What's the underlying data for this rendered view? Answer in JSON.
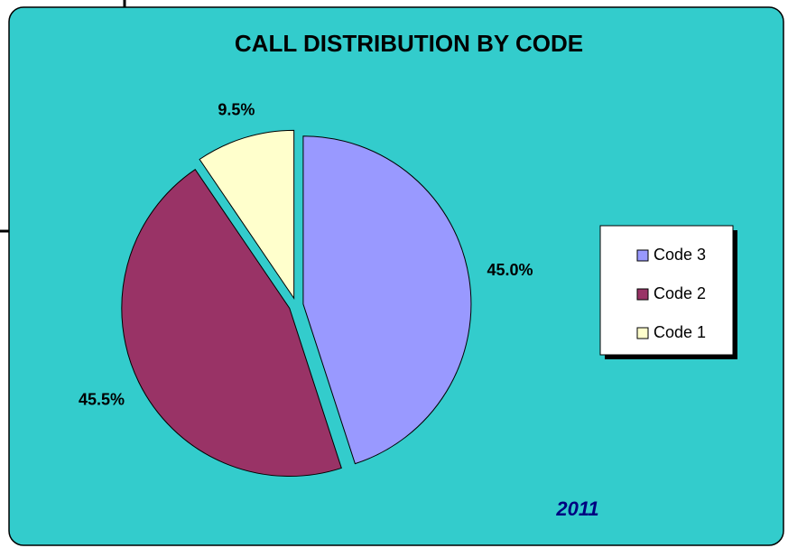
{
  "chart_data": {
    "type": "pie",
    "title": "CALL DISTRIBUTION BY CODE",
    "annotation": "2011",
    "categories": [
      "Code 3",
      "Code 2",
      "Code 1"
    ],
    "values": [
      45.0,
      45.5,
      9.5
    ],
    "value_labels": [
      "45.0%",
      "45.5%",
      "9.5%"
    ],
    "colors": [
      "#9999ff",
      "#993366",
      "#ffffcc"
    ],
    "legend": "right"
  }
}
